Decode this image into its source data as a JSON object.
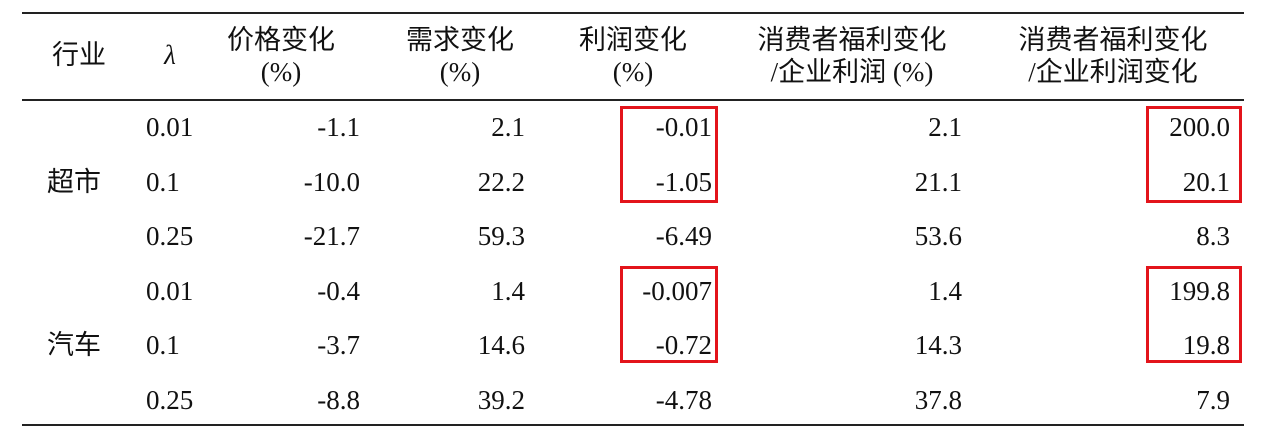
{
  "table": {
    "header": [
      [
        "行业"
      ],
      [
        "λ"
      ],
      [
        "价格变化",
        "(%)"
      ],
      [
        "需求变化",
        "(%)"
      ],
      [
        "利润变化",
        "(%)"
      ],
      [
        "消费者福利变化",
        "/企业利润 (%)"
      ],
      [
        "消费者福利变化",
        "/企业利润变化"
      ]
    ],
    "groups": [
      {
        "industry": "超市",
        "rows": [
          [
            "0.01",
            "-1.1",
            "2.1",
            "-0.01",
            "2.1",
            "200.0"
          ],
          [
            "0.1",
            "-10.0",
            "22.2",
            "-1.05",
            "21.1",
            "20.1"
          ],
          [
            "0.25",
            "-21.7",
            "59.3",
            "-6.49",
            "53.6",
            "8.3"
          ]
        ]
      },
      {
        "industry": "汽车",
        "rows": [
          [
            "0.01",
            "-0.4",
            "1.4",
            "-0.007",
            "1.4",
            "199.8"
          ],
          [
            "0.1",
            "-3.7",
            "14.6",
            "-0.72",
            "14.3",
            "19.8"
          ],
          [
            "0.25",
            "-8.8",
            "39.2",
            "-4.78",
            "37.8",
            "7.9"
          ]
        ]
      }
    ]
  }
}
